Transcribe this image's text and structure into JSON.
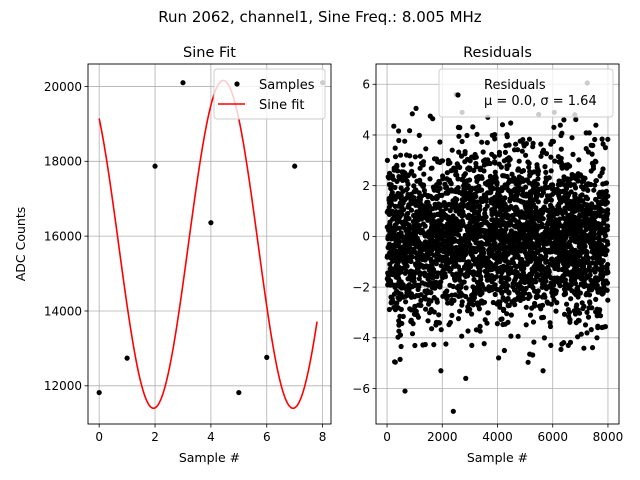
{
  "suptitle": "Run 2062, channel1, Sine Freq.: 8.005 MHz",
  "chart_data": [
    {
      "type": "line",
      "title": "Sine Fit",
      "xlabel": "Sample #",
      "ylabel": "ADC Counts",
      "xlim": [
        -0.4,
        8.3
      ],
      "ylim": [
        10980,
        20600
      ],
      "xticks": [
        0,
        2,
        4,
        6,
        8
      ],
      "yticks": [
        12000,
        14000,
        16000,
        18000,
        20000
      ],
      "grid": true,
      "legend_position": "top-right",
      "series": [
        {
          "name": "Samples",
          "style": "markers",
          "color": "#000000",
          "x": [
            0,
            1,
            2,
            3,
            4,
            5,
            6,
            7,
            8
          ],
          "y": [
            11820,
            12740,
            17870,
            20100,
            16360,
            11820,
            12760,
            17870,
            20100
          ]
        },
        {
          "name": "Sine fit",
          "style": "line",
          "color": "#ff0000",
          "function": {
            "form": "offset + amplitude * sin(2*pi*x/period + phase)",
            "offset": 15780,
            "amplitude": 4380,
            "period": 4.996,
            "phase": -4.017,
            "x_range": [
              0,
              7.8
            ]
          }
        }
      ]
    },
    {
      "type": "scatter",
      "title": "Residuals",
      "xlabel": "Sample #",
      "xlim": [
        -400,
        8400
      ],
      "ylim": [
        -7.4,
        6.8
      ],
      "xticks": [
        0,
        2000,
        4000,
        6000,
        8000
      ],
      "yticks": [
        -6,
        -4,
        -2,
        0,
        2,
        4,
        6
      ],
      "grid": true,
      "legend_position": "top-right",
      "series": [
        {
          "name": "Residuals",
          "legend_line2": "μ = 0.0, σ = 1.64",
          "color": "#000000",
          "n_points": 8000,
          "x_range": [
            0,
            7999
          ],
          "mean": 0.0,
          "sigma": 1.64,
          "notable_points": [
            {
              "x": 2400,
              "y": -6.9
            },
            {
              "x": 650,
              "y": -6.1
            },
            {
              "x": 7250,
              "y": 6.05
            },
            {
              "x": 1050,
              "y": 5.05
            },
            {
              "x": 2500,
              "y": 5.6
            },
            {
              "x": 1950,
              "y": -5.3
            },
            {
              "x": 2850,
              "y": -5.6
            },
            {
              "x": 6800,
              "y": 4.8
            },
            {
              "x": 3650,
              "y": 4.7
            },
            {
              "x": 4250,
              "y": -4.5
            },
            {
              "x": 5650,
              "y": -5.3
            }
          ]
        }
      ]
    }
  ]
}
